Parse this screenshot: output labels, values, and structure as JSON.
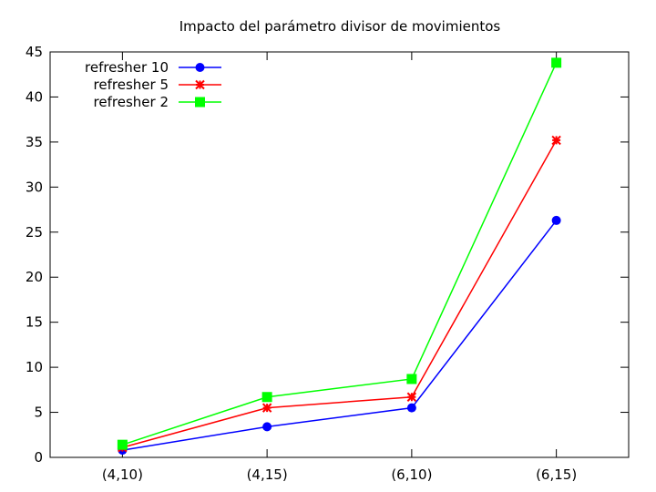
{
  "chart_data": {
    "type": "line",
    "title": "Impacto del parámetro divisor de movimientos",
    "xlabel": "",
    "ylabel": "",
    "categories": [
      "(4,10)",
      "(4,15)",
      "(6,10)",
      "(6,15)"
    ],
    "ylim": [
      0,
      45
    ],
    "yticks": [
      0,
      5,
      10,
      15,
      20,
      25,
      30,
      35,
      40,
      45
    ],
    "grid": false,
    "legend_position": "top-left",
    "series": [
      {
        "name": "refresher 10",
        "values": [
          0.8,
          3.4,
          5.5,
          26.3
        ],
        "color": "#0000ff",
        "marker": "circle"
      },
      {
        "name": "refresher 5",
        "values": [
          1.1,
          5.5,
          6.7,
          35.2
        ],
        "color": "#ff0000",
        "marker": "star"
      },
      {
        "name": "refresher 2",
        "values": [
          1.4,
          6.7,
          8.7,
          43.8
        ],
        "color": "#00ff00",
        "marker": "square"
      }
    ]
  }
}
